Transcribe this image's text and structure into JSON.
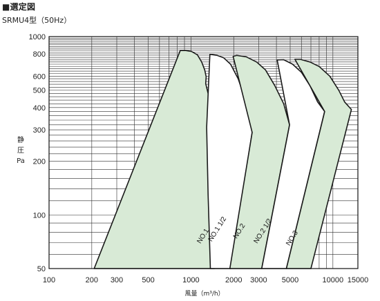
{
  "header": {
    "title": "■選定図",
    "subtitle": "SRMU4型（50Hz）"
  },
  "chart_data": {
    "type": "area",
    "xscale": "log",
    "yscale": "log",
    "xlim": [
      100,
      15000
    ],
    "ylim": [
      50,
      1000
    ],
    "xlabel": "風量（m³/h）",
    "ylabel": [
      "静",
      "圧",
      "Pa"
    ],
    "x_ticks": [
      {
        "value": 100,
        "label": "100"
      },
      {
        "value": 200,
        "label": "200"
      },
      {
        "value": 300,
        "label": "300"
      },
      {
        "value": 500,
        "label": "500"
      },
      {
        "value": 1000,
        "label": "1000"
      },
      {
        "value": 2000,
        "label": "2000"
      },
      {
        "value": 3000,
        "label": "3000"
      },
      {
        "value": 5000,
        "label": "5000"
      },
      {
        "value": 10000,
        "label": "10000"
      },
      {
        "value": 15000,
        "label": "15000"
      }
    ],
    "y_ticks": [
      {
        "value": 50,
        "label": "50"
      },
      {
        "value": 100,
        "label": "100"
      },
      {
        "value": 200,
        "label": "200"
      },
      {
        "value": 300,
        "label": "300"
      },
      {
        "value": 400,
        "label": "400"
      },
      {
        "value": 500,
        "label": "500"
      },
      {
        "value": 600,
        "label": "600"
      },
      {
        "value": 800,
        "label": "800"
      },
      {
        "value": 1000,
        "label": "1000"
      }
    ],
    "grid": true,
    "fill_color": "#d8ead6",
    "line_color": "#1a1a1a",
    "series": [
      {
        "name": "NO.1",
        "boundary": [
          [
            208,
            50
          ],
          [
            840,
            835
          ],
          [
            920,
            835
          ],
          [
            1010,
            825
          ],
          [
            1110,
            790
          ],
          [
            1190,
            720
          ],
          [
            1250,
            650
          ],
          [
            1280,
            595
          ],
          [
            1270,
            545
          ],
          [
            1320,
            480
          ],
          [
            1350,
            400
          ],
          [
            1380,
            360
          ],
          [
            1380,
            300
          ],
          [
            1400,
            200
          ],
          [
            1430,
            100
          ],
          [
            1460,
            50
          ]
        ],
        "shaded": true
      },
      {
        "name": "NO.1 1/2",
        "boundary": [
          [
            1370,
            50
          ],
          [
            1320,
            130
          ],
          [
            1290,
            310
          ],
          [
            1360,
            795
          ],
          [
            1530,
            785
          ],
          [
            1700,
            760
          ],
          [
            1900,
            700
          ],
          [
            2150,
            580
          ],
          [
            2400,
            450
          ],
          [
            2600,
            360
          ],
          [
            2700,
            290
          ],
          [
            1900,
            50
          ]
        ],
        "shaded": false
      },
      {
        "name": "NO.2",
        "boundary": [
          [
            1880,
            50
          ],
          [
            2700,
            290
          ],
          [
            1980,
            775
          ],
          [
            2100,
            785
          ],
          [
            2450,
            770
          ],
          [
            2900,
            720
          ],
          [
            3350,
            650
          ],
          [
            3900,
            530
          ],
          [
            4500,
            420
          ],
          [
            4950,
            320
          ],
          [
            3150,
            50
          ]
        ],
        "shaded": true
      },
      {
        "name": "NO.2 1/2",
        "boundary": [
          [
            3150,
            50
          ],
          [
            4950,
            320
          ],
          [
            4050,
            740
          ],
          [
            4500,
            742
          ],
          [
            5200,
            700
          ],
          [
            6000,
            630
          ],
          [
            6900,
            530
          ],
          [
            7800,
            430
          ],
          [
            8750,
            380
          ],
          [
            4700,
            50
          ]
        ],
        "shaded": false
      },
      {
        "name": "NO.3",
        "boundary": [
          [
            4700,
            50
          ],
          [
            8750,
            380
          ],
          [
            5400,
            745
          ],
          [
            5900,
            745
          ],
          [
            6900,
            720
          ],
          [
            8000,
            680
          ],
          [
            9500,
            600
          ],
          [
            11000,
            500
          ],
          [
            12100,
            430
          ],
          [
            13500,
            390
          ],
          [
            7000,
            50
          ]
        ],
        "shaded": true
      }
    ],
    "curve_labels": [
      {
        "text": "NO.1",
        "at": [
          1250,
          75
        ]
      },
      {
        "text": "NO.1 1/2",
        "at": [
          1575,
          82
        ]
      },
      {
        "text": "NO.2",
        "at": [
          2250,
          80
        ]
      },
      {
        "text": "NO.2 1/2",
        "at": [
          3300,
          80
        ]
      },
      {
        "text": "NO.3",
        "at": [
          5300,
          73
        ]
      }
    ]
  }
}
